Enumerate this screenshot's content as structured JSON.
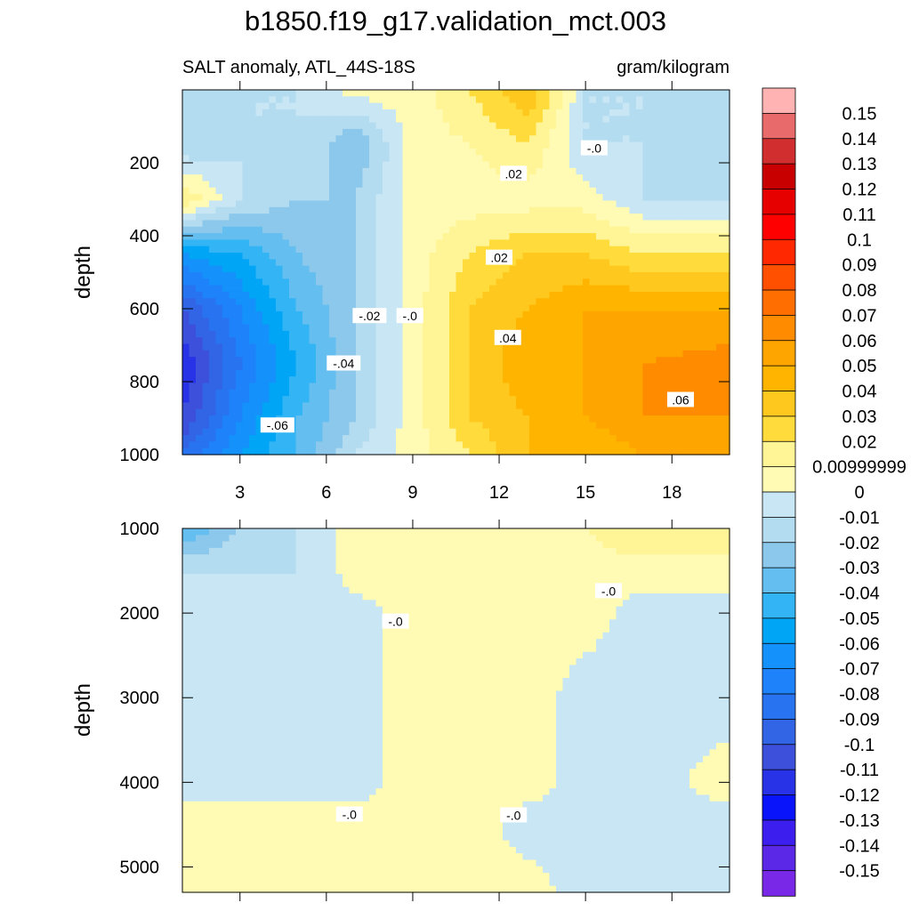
{
  "figure": {
    "title": "b1850.f19_g17.validation_mct.003",
    "subtitle_left": "SALT anomaly, ATL_44S-18S",
    "subtitle_right": "gram/kilogram"
  },
  "colorbar": {
    "labels": [
      "0.15",
      "0.14",
      "0.13",
      "0.12",
      "0.11",
      "0.1",
      "0.09",
      "0.08",
      "0.07",
      "0.06",
      "0.05",
      "0.04",
      "0.03",
      "0.02",
      "0.00999999",
      "0",
      "-0.01",
      "-0.02",
      "-0.03",
      "-0.04",
      "-0.05",
      "-0.06",
      "-0.07",
      "-0.08",
      "-0.09",
      "-0.1",
      "-0.11",
      "-0.12",
      "-0.13",
      "-0.14",
      "-0.15"
    ],
    "colors": [
      "#ffb3b3",
      "#e86a6a",
      "#d12f2f",
      "#c80000",
      "#e60000",
      "#ff0000",
      "#ff2800",
      "#ff5000",
      "#ff6e00",
      "#ff8c00",
      "#ffa500",
      "#ffb400",
      "#ffc81e",
      "#ffdc3c",
      "#fff596",
      "#fffab4",
      "#c8e6f4",
      "#b4dcf0",
      "#8cc8eb",
      "#64bef0",
      "#32b4f5",
      "#00a5f5",
      "#1491fa",
      "#1e82fa",
      "#2873f0",
      "#3264e6",
      "#3c50dc",
      "#2832e6",
      "#0a14fa",
      "#3c1eef",
      "#5a28e6",
      "#7828e6"
    ]
  },
  "chart_data": [
    {
      "type": "heatmap",
      "panel": "upper",
      "ylabel": "depth",
      "xlim": [
        1,
        20
      ],
      "ylim": [
        1000,
        0
      ],
      "xticks": [
        3,
        6,
        9,
        12,
        15,
        18
      ],
      "yticks": [
        200,
        400,
        600,
        800,
        1000
      ],
      "x": [
        1,
        3,
        5,
        7,
        9,
        11,
        13,
        15,
        17,
        20
      ],
      "y": [
        0,
        150,
        300,
        450,
        600,
        750,
        900,
        1000
      ],
      "z": [
        [
          -0.02,
          -0.01,
          -0.01,
          0.005,
          0.005,
          0.02,
          0.04,
          -0.01,
          -0.01,
          -0.02
        ],
        [
          -0.02,
          -0.01,
          -0.01,
          -0.03,
          0.005,
          0.01,
          0.02,
          -0.01,
          -0.01,
          -0.02
        ],
        [
          0.02,
          -0.01,
          -0.02,
          -0.02,
          0.005,
          0.005,
          0.005,
          0.005,
          -0.01,
          -0.01
        ],
        [
          -0.06,
          -0.05,
          -0.03,
          -0.02,
          0.005,
          0.02,
          0.03,
          0.03,
          0.02,
          0.02
        ],
        [
          -0.1,
          -0.07,
          -0.04,
          -0.02,
          0.005,
          0.03,
          0.04,
          0.05,
          0.05,
          0.05
        ],
        [
          -0.12,
          -0.08,
          -0.05,
          -0.02,
          0.005,
          0.03,
          0.05,
          0.05,
          0.06,
          0.065
        ],
        [
          -0.11,
          -0.07,
          -0.04,
          -0.02,
          0.005,
          0.03,
          0.04,
          0.05,
          0.06,
          0.06
        ],
        [
          -0.09,
          -0.06,
          -0.04,
          -0.01,
          0.005,
          0.02,
          0.04,
          0.04,
          0.05,
          0.05
        ]
      ],
      "contour_labels": [
        {
          "text": "-.0",
          "x": 15.3,
          "y": 160
        },
        {
          "text": ".02",
          "x": 12.5,
          "y": 230
        },
        {
          "text": ".02",
          "x": 12.0,
          "y": 460
        },
        {
          "text": "-.02",
          "x": 7.5,
          "y": 620
        },
        {
          "text": "-.0",
          "x": 8.9,
          "y": 620
        },
        {
          "text": ".04",
          "x": 12.3,
          "y": 680
        },
        {
          "text": "-.04",
          "x": 6.6,
          "y": 750
        },
        {
          "text": "-.06",
          "x": 4.3,
          "y": 920
        },
        {
          "text": ".06",
          "x": 18.3,
          "y": 850
        }
      ]
    },
    {
      "type": "heatmap",
      "panel": "lower",
      "ylabel": "depth",
      "xlim": [
        1,
        20
      ],
      "ylim": [
        5300,
        1000
      ],
      "yticks": [
        1000,
        2000,
        3000,
        4000,
        5000
      ],
      "x": [
        1,
        3,
        5,
        7,
        9,
        11,
        13,
        15,
        17,
        20
      ],
      "y": [
        1000,
        1500,
        2000,
        3000,
        4000,
        4500,
        5300
      ],
      "z": [
        [
          -0.04,
          -0.02,
          -0.01,
          0.005,
          0.005,
          0.005,
          0.01,
          0.01,
          0.02,
          0.02
        ],
        [
          -0.01,
          -0.01,
          -0.01,
          0.005,
          0.005,
          0.005,
          0.005,
          0.005,
          0.005,
          0.005
        ],
        [
          -0.005,
          -0.005,
          -0.005,
          -0.005,
          0.005,
          0.005,
          0.005,
          0.005,
          -0.005,
          -0.005
        ],
        [
          -0.01,
          -0.005,
          -0.005,
          -0.005,
          0.005,
          0.005,
          0.005,
          -0.005,
          -0.005,
          -0.005
        ],
        [
          -0.005,
          -0.005,
          -0.005,
          -0.005,
          0.005,
          0.005,
          0.005,
          -0.005,
          -0.005,
          0.005
        ],
        [
          0.005,
          0.005,
          0.005,
          0.005,
          0.005,
          0.005,
          -0.005,
          -0.005,
          -0.005,
          -0.005
        ],
        [
          0.005,
          0.005,
          0.005,
          0.005,
          0.005,
          0.005,
          0.005,
          -0.005,
          -0.005,
          -0.005
        ]
      ],
      "contour_labels": [
        {
          "text": "-.0",
          "x": 15.8,
          "y": 1740
        },
        {
          "text": "-.0",
          "x": 8.4,
          "y": 2100
        },
        {
          "text": "-.0",
          "x": 6.8,
          "y": 4380
        },
        {
          "text": "-.0",
          "x": 12.5,
          "y": 4390
        }
      ]
    }
  ]
}
